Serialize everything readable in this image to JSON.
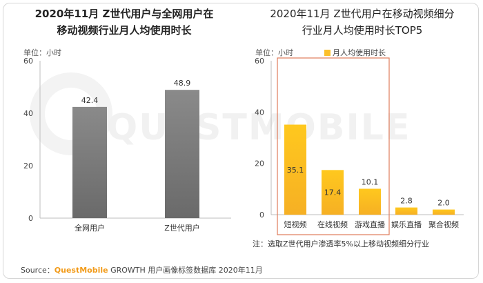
{
  "left_chart": {
    "title_lines": [
      "2020年11月 Z世代用户与全网用户在",
      "移动视频行业月人均使用时长"
    ],
    "unit": "单位：小时"
  },
  "right_chart": {
    "title_lines": [
      "2020年11月 Z世代用户在移动视频细分",
      "行业月人均使用时长TOP5"
    ],
    "unit": "单位：小时",
    "legend": "月人均使用时长",
    "note": "注：选取Z世代用户渗透率5%以上移动视频细分行业"
  },
  "source": {
    "prefix": "Source：",
    "brand": "QuestMobile",
    "rest": " GROWTH 用户画像标签数据库 2020年11月"
  },
  "watermark": "QUESTMOBILE",
  "colors": {
    "gray_bar": "#7a7a7a",
    "yellow_bar": "#fcc02b",
    "highlight_box": "#e07b5a"
  },
  "chart_data": [
    {
      "type": "bar",
      "categories": [
        "全网用户",
        "Z世代用户"
      ],
      "values": [
        42.4,
        48.9
      ],
      "ylim": [
        0,
        60
      ],
      "yticks": [
        0,
        20,
        40,
        60
      ],
      "grid": false
    },
    {
      "type": "bar",
      "categories": [
        "短视频",
        "在线视频",
        "游戏直播",
        "娱乐直播",
        "聚合视频"
      ],
      "values": [
        35.1,
        17.4,
        10.1,
        2.8,
        2.0
      ],
      "ylim": [
        0,
        60
      ],
      "yticks": [
        0,
        20,
        40,
        60
      ],
      "grid": false,
      "highlighted_categories": [
        "短视频",
        "在线视频",
        "游戏直播"
      ]
    }
  ]
}
